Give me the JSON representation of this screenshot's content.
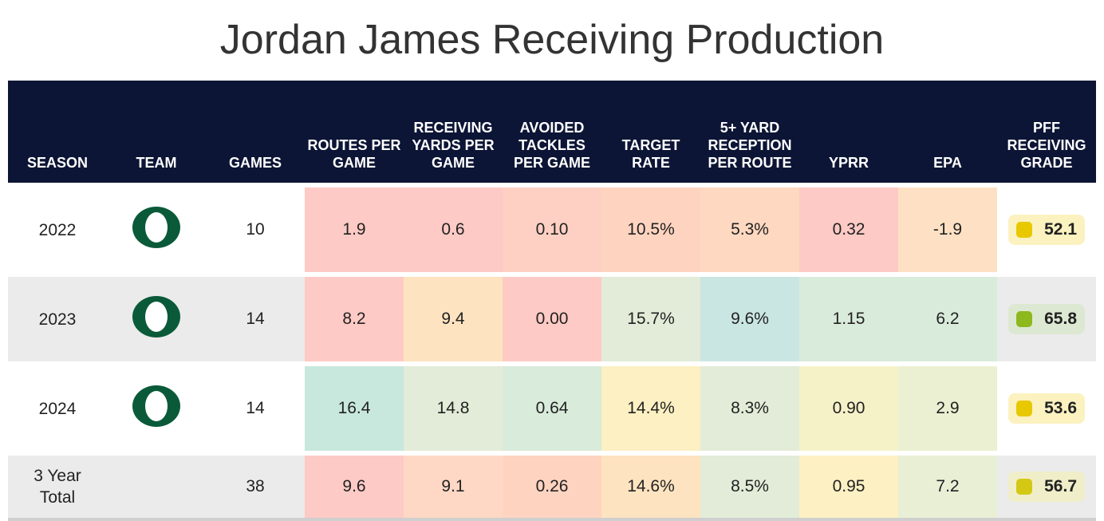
{
  "title": "Jordan James Receiving Production",
  "chart_data": {
    "type": "table",
    "title": "Jordan James Receiving Production",
    "columns": [
      "SEASON",
      "TEAM",
      "GAMES",
      "ROUTES PER GAME",
      "RECEIVING YARDS PER GAME",
      "AVOIDED TACKLES PER GAME",
      "TARGET RATE",
      "5+ YARD RECEPTION PER ROUTE",
      "YPRR",
      "EPA",
      "PFF RECEIVING GRADE"
    ],
    "rows": [
      {
        "season": "2022",
        "team": "O",
        "games": "10",
        "cells": [
          "1.9",
          "0.6",
          "0.10",
          "10.5%",
          "5.3%",
          "0.32",
          "-1.9"
        ],
        "grade": "52.1"
      },
      {
        "season": "2023",
        "team": "O",
        "games": "14",
        "cells": [
          "8.2",
          "9.4",
          "0.00",
          "15.7%",
          "9.6%",
          "1.15",
          "6.2"
        ],
        "grade": "65.8"
      },
      {
        "season": "2024",
        "team": "O",
        "games": "14",
        "cells": [
          "16.4",
          "14.8",
          "0.64",
          "14.4%",
          "8.3%",
          "0.90",
          "2.9"
        ],
        "grade": "53.6"
      },
      {
        "season": "3 Year Total",
        "team": "",
        "games": "38",
        "cells": [
          "9.6",
          "9.1",
          "0.26",
          "14.6%",
          "8.5%",
          "0.95",
          "7.2"
        ],
        "grade": "56.7"
      }
    ],
    "cell_colors": [
      [
        "#fdcac5",
        "#fdcac5",
        "#fed0c3",
        "#fed4c0",
        "#fed8c0",
        "#fdcac5",
        "#fee1c4"
      ],
      [
        "#fdcac5",
        "#fde3c0",
        "#fdcac5",
        "#e2ecd8",
        "#cae6e3",
        "#d9ebdb",
        "#d9ebdb"
      ],
      [
        "#c8e8de",
        "#e2ecd8",
        "#d9ebdb",
        "#fdf0c2",
        "#e2ecd8",
        "#f5f2c8",
        "#ecf0d2"
      ],
      [
        "#fdcac5",
        "#fed8c5",
        "#fed4c0",
        "#fde3c0",
        "#e2ecd8",
        "#fdf0c2",
        "#e9efd5"
      ]
    ],
    "grade_colors": [
      {
        "bg": "#fbf2c0",
        "dot": "#e8c800"
      },
      {
        "bg": "#dde8d2",
        "dot": "#8db81e"
      },
      {
        "bg": "#fbf2c0",
        "dot": "#e8c800"
      },
      {
        "bg": "#f0eec8",
        "dot": "#d4c814"
      }
    ],
    "logo_color": "#0a5a3a"
  }
}
